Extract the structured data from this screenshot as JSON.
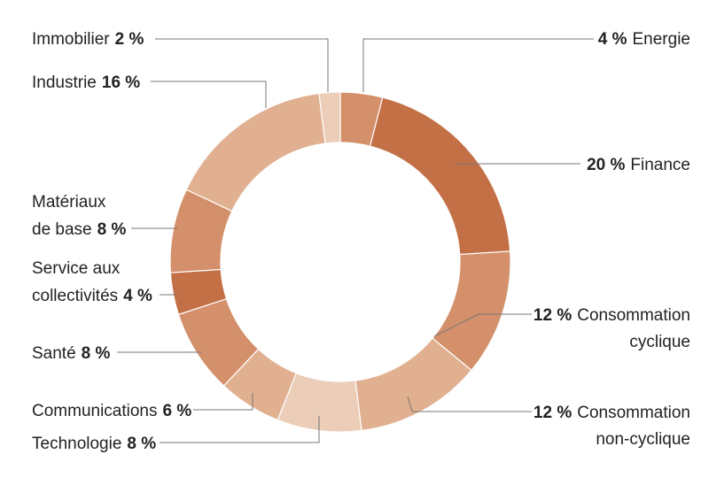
{
  "chart_data": {
    "type": "pie",
    "variant": "donut",
    "title": "",
    "slices": [
      {
        "name": "Energie",
        "value": 4,
        "pct_label": "4 %",
        "color": "#D4906B"
      },
      {
        "name": "Finance",
        "value": 20,
        "pct_label": "20 %",
        "color": "#C47047"
      },
      {
        "name": "Consommation cyclique",
        "value": 12,
        "pct_label": "12 %",
        "color": "#D4906B"
      },
      {
        "name": "Consommation non-cyclique",
        "value": 12,
        "pct_label": "12 %",
        "color": "#E0B091"
      },
      {
        "name": "Technologie",
        "value": 8,
        "pct_label": "8 %",
        "color": "#EBCDB8"
      },
      {
        "name": "Communications",
        "value": 6,
        "pct_label": "6 %",
        "color": "#E0B091"
      },
      {
        "name": "Santé",
        "value": 8,
        "pct_label": "8 %",
        "color": "#D4906B"
      },
      {
        "name": "Service aux collectivités",
        "value": 4,
        "pct_label": "4 %",
        "color": "#C47047"
      },
      {
        "name": "Matériaux de base",
        "value": 8,
        "pct_label": "8 %",
        "color": "#D4906B"
      },
      {
        "name": "Industrie",
        "value": 16,
        "pct_label": "16 %",
        "color": "#E0B091"
      },
      {
        "name": "Immobilier",
        "value": 2,
        "pct_label": "2 %",
        "color": "#EBCDB8"
      }
    ]
  },
  "labels": {
    "energie": {
      "pct": "4 %",
      "text": "Energie"
    },
    "finance": {
      "pct": "20 %",
      "text": "Finance"
    },
    "cons_cyc": {
      "pct": "12 %",
      "line1": "Consommation",
      "line2": "cyclique"
    },
    "cons_noncyc": {
      "pct": "12 %",
      "line1": "Consommation",
      "line2": "non-cyclique"
    },
    "immobilier": {
      "text": "Immobilier",
      "pct": "2 %"
    },
    "industrie": {
      "text": "Industrie",
      "pct": "16 %"
    },
    "materiaux": {
      "line1": "Matériaux",
      "line2": "de base",
      "pct": "8 %"
    },
    "service": {
      "line1": "Service aux",
      "line2": "collectivités",
      "pct": "4 %"
    },
    "sante": {
      "text": "Santé",
      "pct": "8 %"
    },
    "communications": {
      "text": "Communications",
      "pct": "6 %"
    },
    "technologie": {
      "text": "Technologie",
      "pct": "8 %"
    }
  }
}
